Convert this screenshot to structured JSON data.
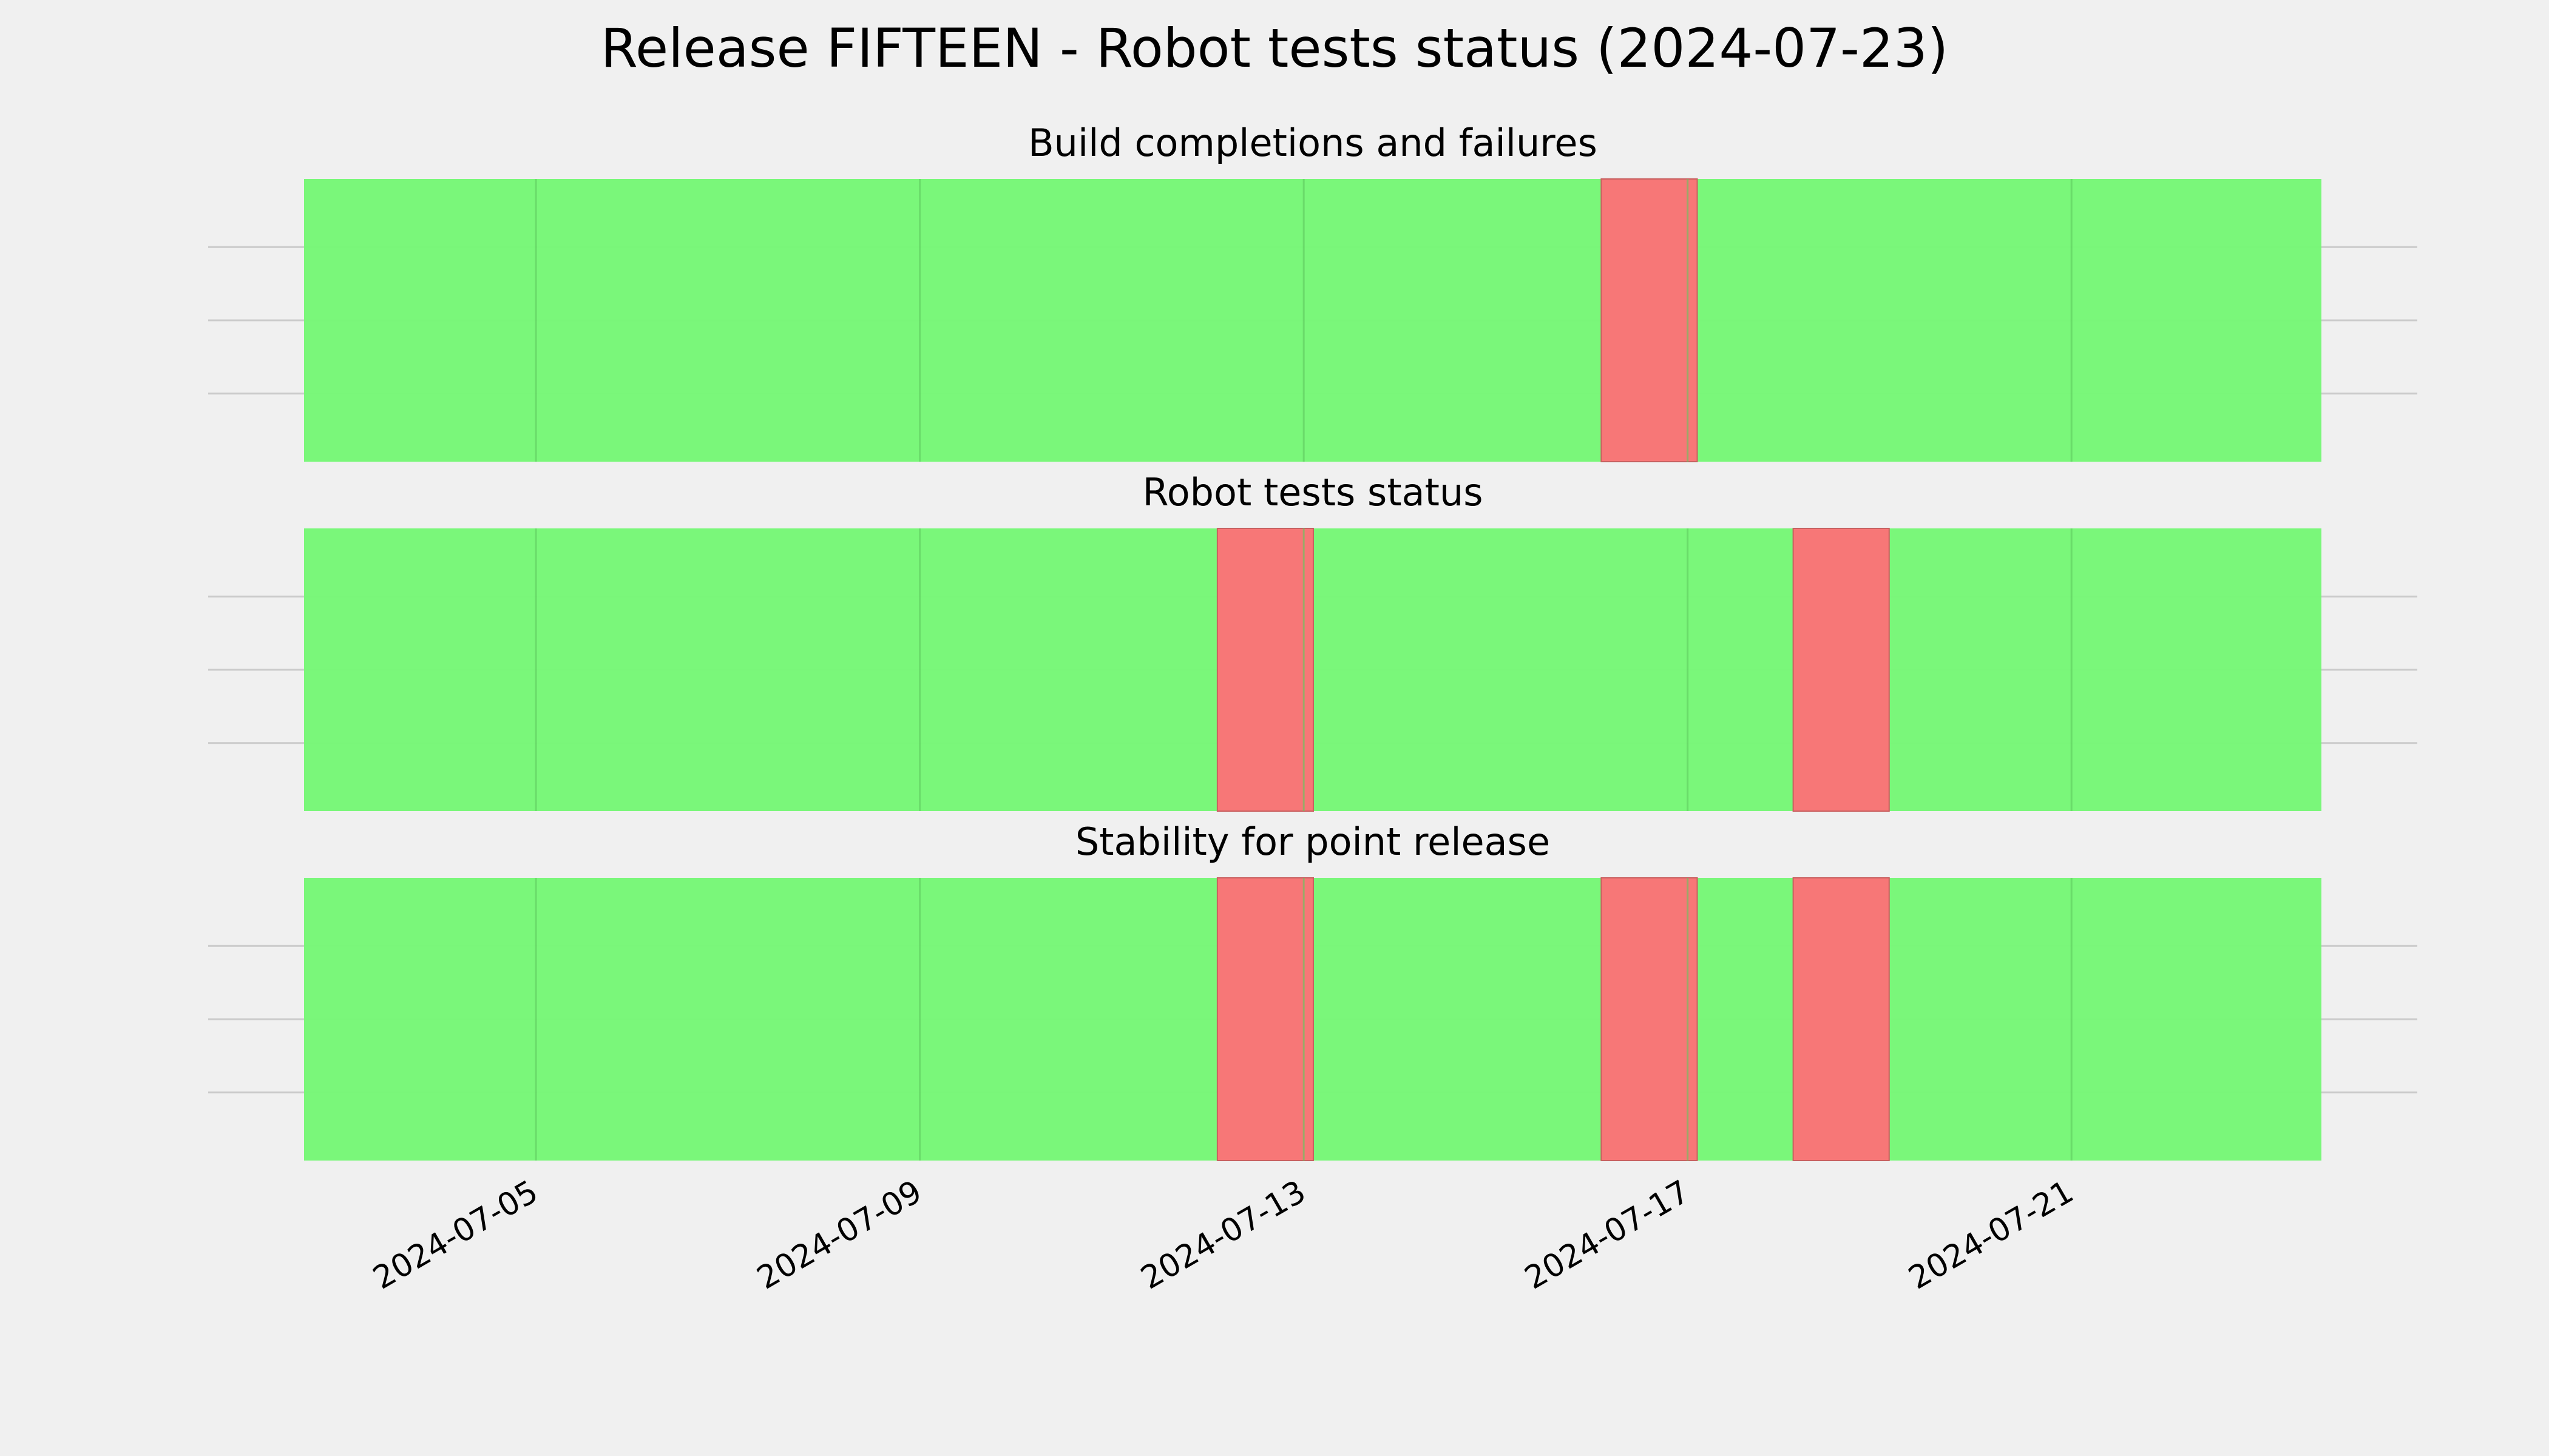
{
  "title": "Release FIFTEEN - Robot tests status (2024-07-23)",
  "chart_data": [
    {
      "type": "status-timeline",
      "title": "Build completions and failures",
      "xlim": [
        "2024-07-02T14:00",
        "2024-07-23T14:30"
      ],
      "pass_color": "#77f777",
      "fail_color": "#f77777",
      "failures": [
        [
          "2024-07-16T02:24",
          "2024-07-17T02:24"
        ]
      ]
    },
    {
      "type": "status-timeline",
      "title": "Robot tests status",
      "xlim": [
        "2024-07-02T14:00",
        "2024-07-23T14:30"
      ],
      "pass_color": "#77f777",
      "fail_color": "#f77777",
      "failures": [
        [
          "2024-07-12T02:24",
          "2024-07-13T02:24"
        ],
        [
          "2024-07-18T02:24",
          "2024-07-19T02:24"
        ]
      ]
    },
    {
      "type": "status-timeline",
      "title": "Stability for point release",
      "xlim": [
        "2024-07-02T14:00",
        "2024-07-23T14:30"
      ],
      "pass_color": "#77f777",
      "fail_color": "#f77777",
      "failures": [
        [
          "2024-07-12T02:24",
          "2024-07-13T02:24"
        ],
        [
          "2024-07-16T02:24",
          "2024-07-17T02:24"
        ],
        [
          "2024-07-18T02:24",
          "2024-07-19T02:24"
        ]
      ],
      "xticks": [
        "2024-07-05",
        "2024-07-09",
        "2024-07-13",
        "2024-07-17",
        "2024-07-21"
      ]
    }
  ]
}
